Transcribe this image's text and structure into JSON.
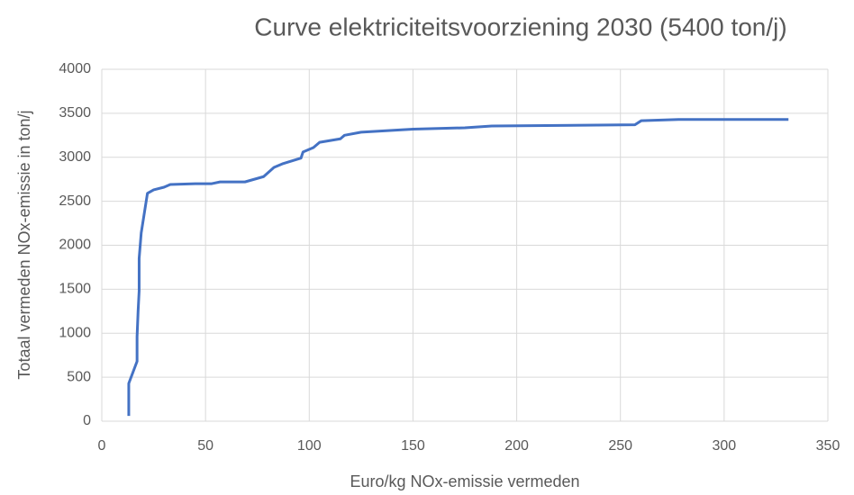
{
  "chart_data": {
    "type": "line",
    "title": "Curve elektriciteitsvoorziening 2030  (5400 ton/j)",
    "xlabel": "Euro/kg NOx-emissie vermeden",
    "ylabel": "Totaal vermeden  NOx-emissie in ton/j",
    "x": [
      13,
      13,
      17,
      17,
      17.5,
      18,
      18,
      19,
      22,
      25,
      30,
      33,
      45,
      53,
      57,
      69,
      78,
      83,
      87,
      96,
      97,
      102,
      105,
      115,
      117,
      125,
      150,
      175,
      188,
      257,
      260,
      278,
      331
    ],
    "series": [
      {
        "name": "Totaal vermeden NOx-emissie",
        "color": "#4472c4",
        "values": [
          60,
          430,
          680,
          960,
          1250,
          1480,
          1850,
          2140,
          2590,
          2630,
          2660,
          2690,
          2700,
          2700,
          2720,
          2720,
          2780,
          2885,
          2925,
          2990,
          3060,
          3110,
          3170,
          3210,
          3250,
          3285,
          3320,
          3335,
          3355,
          3370,
          3415,
          3430,
          3430
        ]
      }
    ],
    "xlim": [
      0,
      350
    ],
    "xticks": [
      0,
      50,
      100,
      150,
      200,
      250,
      300,
      350
    ],
    "ylim": [
      0,
      4000
    ],
    "yticks": [
      0,
      500,
      1000,
      1500,
      2000,
      2500,
      3000,
      3500,
      4000
    ],
    "grid": true
  }
}
